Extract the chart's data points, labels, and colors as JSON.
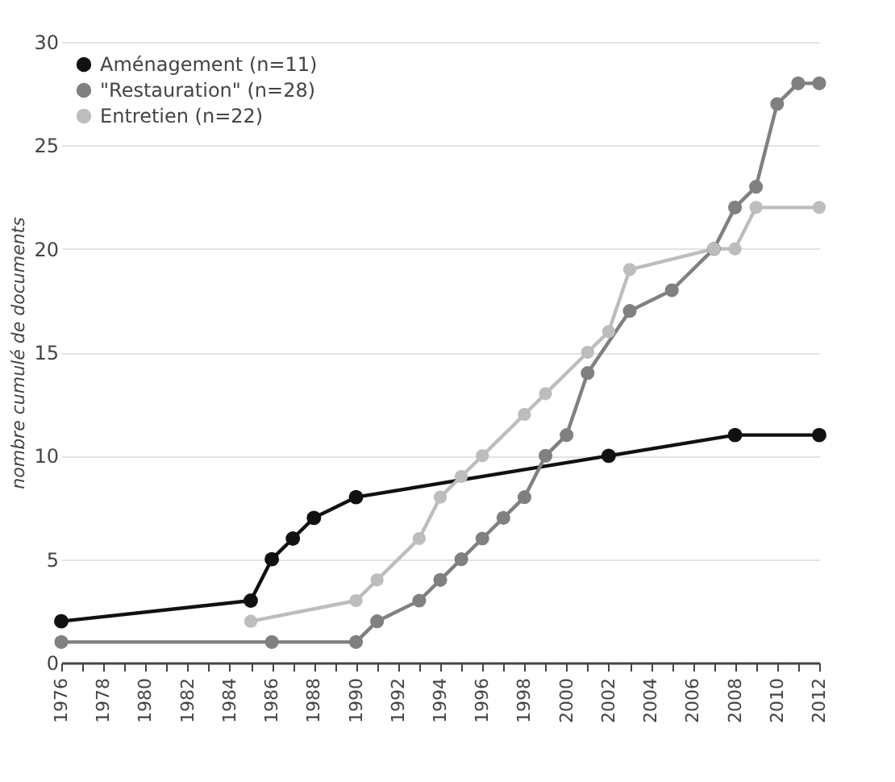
{
  "chart_data": {
    "type": "line",
    "ylabel": "nombre cumulé de documents",
    "xlim": [
      1976,
      2012
    ],
    "ylim": [
      0,
      30
    ],
    "xticks": [
      1976,
      {
        "value": 1977,
        "label": null
      },
      1978,
      {
        "value": 1979,
        "label": null
      },
      1980,
      {
        "value": 1981,
        "label": null
      },
      1982,
      {
        "value": 1983,
        "label": null
      },
      1984,
      {
        "value": 1985,
        "label": null
      },
      1986,
      {
        "value": 1987,
        "label": null
      },
      1988,
      {
        "value": 1989,
        "label": null
      },
      1990,
      {
        "value": 1991,
        "label": null
      },
      1992,
      {
        "value": 1993,
        "label": null
      },
      1994,
      {
        "value": 1995,
        "label": null
      },
      1996,
      {
        "value": 1997,
        "label": null
      },
      1998,
      {
        "value": 1999,
        "label": null
      },
      2000,
      {
        "value": 2001,
        "label": null
      },
      2002,
      {
        "value": 2003,
        "label": null
      },
      2004,
      {
        "value": 2005,
        "label": null
      },
      2006,
      {
        "value": 2007,
        "label": null
      },
      2008,
      {
        "value": 2009,
        "label": null
      },
      2010,
      {
        "value": 2011,
        "label": null
      },
      2012
    ],
    "yticks": [
      0,
      5,
      10,
      15,
      20,
      25,
      30
    ],
    "grid": "y",
    "legend": "top left",
    "marker": "circle",
    "line_style": "solid",
    "series": [
      {
        "name": "Aménagement (n=11)",
        "color": "#111111",
        "x": [
          1976,
          1985,
          1986,
          1987,
          1988,
          1990,
          2002,
          2008,
          2012
        ],
        "values": [
          2,
          3,
          5,
          6,
          7,
          8,
          10,
          11,
          11
        ]
      },
      {
        "name": "\"Restauration\" (n=28)",
        "color": "#808080",
        "x": [
          1976,
          1986,
          1990,
          1991,
          1993,
          1994,
          1995,
          1996,
          1997,
          1998,
          1999,
          2000,
          2001,
          2003,
          2005,
          2007,
          2008,
          2009,
          2010,
          2011,
          2012
        ],
        "values": [
          1,
          1,
          1,
          2,
          3,
          4,
          5,
          6,
          7,
          8,
          10,
          11,
          14,
          17,
          18,
          20,
          22,
          23,
          27,
          28,
          28
        ]
      },
      {
        "name": "Entretien (n=22)",
        "color": "#bdbdbd",
        "x": [
          1985,
          1990,
          1991,
          1993,
          1994,
          1995,
          1996,
          1998,
          1999,
          2001,
          2002,
          2003,
          2007,
          2008,
          2009,
          2012
        ],
        "values": [
          2,
          3,
          4,
          6,
          8,
          9,
          10,
          12,
          13,
          15,
          16,
          19,
          20,
          20,
          22,
          22
        ]
      }
    ]
  }
}
